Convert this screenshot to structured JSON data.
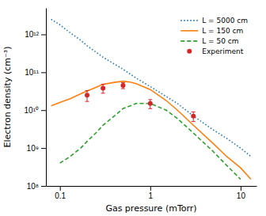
{
  "chart_data": {
    "type": "line",
    "xlabel": "Gas pressure (mTorr)",
    "ylabel": "Electron density (cm⁻³)",
    "log": true,
    "legend": "top-right",
    "xlim": [
      0.07,
      15
    ],
    "ylim": [
      100000000,
      5000000000000
    ],
    "xticks": [
      0.1,
      1,
      10
    ],
    "yticks": [
      {
        "value": 100000000,
        "label": "10⁸"
      },
      {
        "value": 1000000000,
        "label": "10⁹"
      },
      {
        "value": 10000000000,
        "label": "10¹⁰"
      },
      {
        "value": 100000000000,
        "label": "10¹¹"
      },
      {
        "value": 1000000000000,
        "label": "10¹²"
      }
    ],
    "series": [
      {
        "name": "L = 5000 cm",
        "line_style": "dotted",
        "x": [
          0.08,
          0.1,
          0.13,
          0.17,
          0.2,
          0.3,
          0.5,
          0.7,
          1.0,
          1.5,
          2.0,
          3.0,
          5.0,
          7.0,
          10.0,
          13.0
        ],
        "values": [
          2500000000000.0,
          1800000000000.0,
          1100000000000.0,
          700000000000.0,
          500000000000.0,
          250000000000.0,
          120000000000.0,
          70000000000.0,
          42000000000.0,
          23000000000.0,
          15000000000.0,
          7000000000.0,
          3000000000.0,
          1800000000.0,
          1000000000.0,
          600000000.0
        ]
      },
      {
        "name": "L = 150 cm",
        "line_style": "solid",
        "x": [
          0.08,
          0.1,
          0.13,
          0.17,
          0.2,
          0.25,
          0.3,
          0.4,
          0.5,
          0.6,
          0.7,
          1.0,
          1.5,
          2.0,
          3.0,
          5.0,
          7.0,
          10.0,
          13.0
        ],
        "values": [
          13000000000.0,
          16000000000.0,
          20000000000.0,
          27000000000.0,
          32000000000.0,
          40000000000.0,
          48000000000.0,
          54000000000.0,
          58000000000.0,
          55000000000.0,
          50000000000.0,
          35000000000.0,
          18000000000.0,
          10000000000.0,
          4000000000.0,
          1300000000.0,
          600000000.0,
          300000000.0,
          150000000.0
        ]
      },
      {
        "name": "L = 50 cm",
        "line_style": "dashed",
        "x": [
          0.1,
          0.13,
          0.17,
          0.2,
          0.25,
          0.3,
          0.4,
          0.5,
          0.7,
          1.0,
          1.5,
          2.0,
          3.0,
          5.0,
          7.0,
          10.0
        ],
        "values": [
          400000000.0,
          600000000.0,
          1000000000.0,
          1500000000.0,
          2500000000.0,
          4000000000.0,
          7000000000.0,
          11000000000.0,
          15000000000.0,
          15000000000.0,
          10000000000.0,
          6000000000.0,
          2500000000.0,
          800000000.0,
          350000000.0,
          150000000.0
        ]
      },
      {
        "name": "Experiment",
        "type": "scatter",
        "marker": "circle",
        "x": [
          0.2,
          0.3,
          0.5,
          1.0,
          3.0
        ],
        "values": [
          25000000000.0,
          38000000000.0,
          45000000000.0,
          15000000000.0,
          7000000000.0
        ],
        "yerr_lo": [
          8000000000.0,
          10000000000.0,
          8000000000.0,
          4000000000.0,
          2000000000.0
        ],
        "yerr_hi": [
          8000000000.0,
          10000000000.0,
          8000000000.0,
          4000000000.0,
          2000000000.0
        ]
      }
    ]
  }
}
